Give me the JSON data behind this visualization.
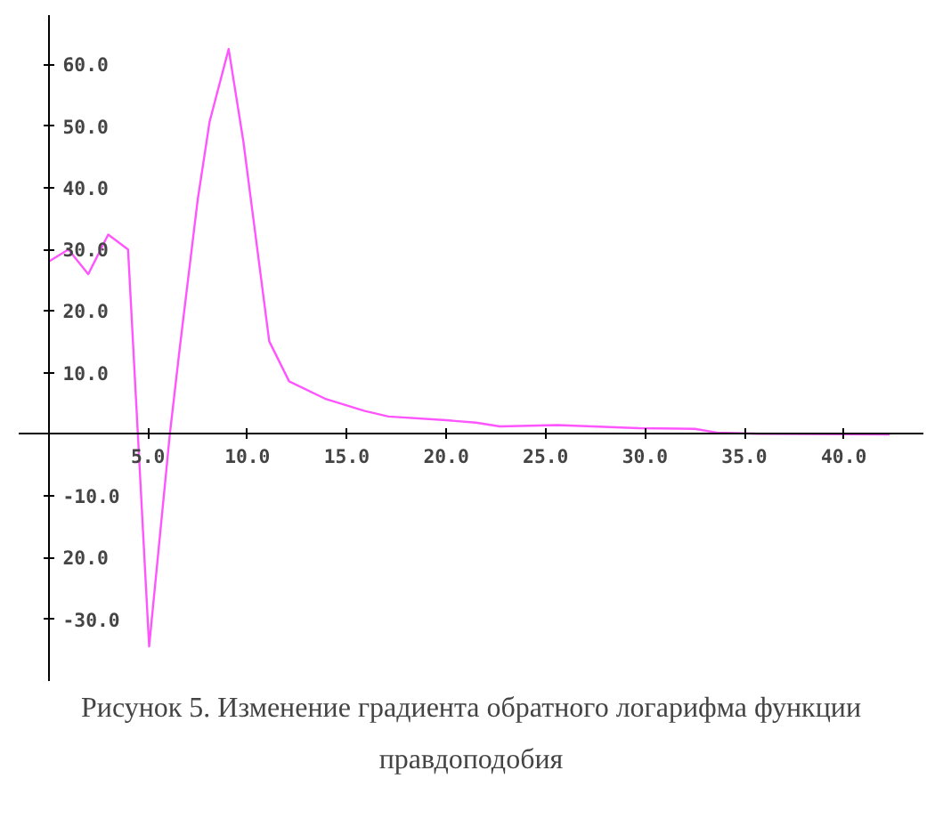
{
  "chart_data": {
    "type": "line",
    "title": "Рисунок 5. Изменение градиента обратного логарифма функции правдоподобия",
    "x": [
      0,
      1.0,
      2.0,
      3.0,
      4.0,
      5.06,
      6.1,
      6.6,
      7.5,
      8.1,
      9.06,
      9.8,
      11.1,
      12.1,
      13.9,
      15.9,
      17.1,
      20.0,
      21.5,
      22.7,
      25.6,
      29.7,
      32.5,
      33.6,
      35.7,
      42.3
    ],
    "series": [
      {
        "color": "#ff55ff",
        "values": [
          28,
          30,
          26,
          32.4,
          30,
          -34.4,
          0,
          14,
          38,
          50.7,
          62.5,
          47.5,
          15.1,
          8.6,
          5.8,
          3.8,
          2.9,
          2.3,
          1.9,
          1.3,
          1.5,
          1.0,
          0.9,
          0.3,
          0.1,
          0
        ]
      }
    ],
    "xlim": [
      -1.5,
      44
    ],
    "ylim": [
      -40,
      68
    ],
    "xticks": [
      {
        "value": 5,
        "label": "5.0"
      },
      {
        "value": 10,
        "label": "10.0"
      },
      {
        "value": 15,
        "label": "15.0"
      },
      {
        "value": 20,
        "label": "20.0"
      },
      {
        "value": 25,
        "label": "25.0"
      },
      {
        "value": 30,
        "label": "30.0"
      },
      {
        "value": 35,
        "label": "35.0"
      },
      {
        "value": 40,
        "label": "40.0"
      }
    ],
    "yticks": [
      {
        "value": -30,
        "label": "-30.0"
      },
      {
        "value": -20,
        "label": "20.0"
      },
      {
        "value": -10,
        "label": "-10.0"
      },
      {
        "value": 10,
        "label": "10.0"
      },
      {
        "value": 20,
        "label": "20.0"
      },
      {
        "value": 30,
        "label": "30.0"
      },
      {
        "value": 40,
        "label": "40.0"
      },
      {
        "value": 50,
        "label": "50.0"
      },
      {
        "value": 60,
        "label": "60.0"
      }
    ],
    "grid": false
  }
}
